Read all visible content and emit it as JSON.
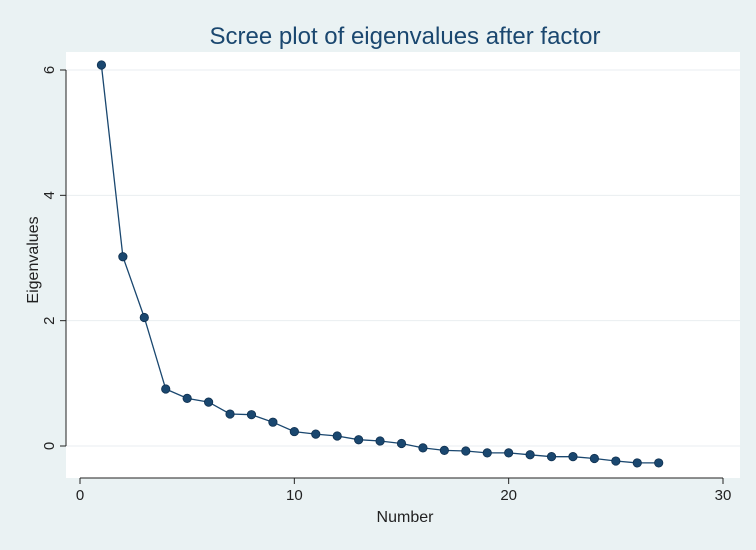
{
  "chart_data": {
    "type": "line",
    "title": "Scree plot of eigenvalues after factor",
    "xlabel": "Number",
    "ylabel": "Eigenvalues",
    "xlim": [
      0,
      30
    ],
    "ylim": [
      -0.4,
      6.25
    ],
    "xticks": [
      0,
      10,
      20,
      30
    ],
    "yticks": [
      0,
      2,
      4,
      6
    ],
    "grid": true,
    "colors": {
      "background": "#eaf2f3",
      "plot": "#ffffff",
      "series": "#1a476f"
    },
    "series": [
      {
        "x": [
          1,
          2,
          3,
          4,
          5,
          6,
          7,
          8,
          9,
          10,
          11,
          12,
          13,
          14,
          15,
          16,
          17,
          18,
          19,
          20,
          21,
          22,
          23,
          24,
          25,
          26,
          27
        ],
        "values": [
          6.08,
          3.02,
          2.05,
          0.91,
          0.76,
          0.7,
          0.51,
          0.5,
          0.38,
          0.23,
          0.19,
          0.16,
          0.1,
          0.08,
          0.04,
          -0.03,
          -0.07,
          -0.08,
          -0.11,
          -0.11,
          -0.14,
          -0.17,
          -0.17,
          -0.2,
          -0.24,
          -0.27,
          -0.27
        ]
      }
    ]
  }
}
